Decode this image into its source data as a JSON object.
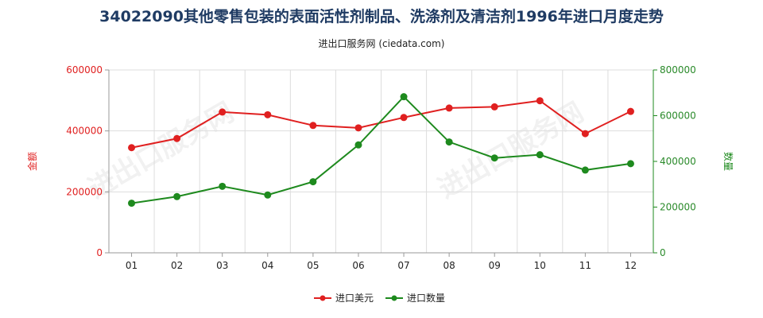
{
  "title": "34022090其他零售包装的表面活性剂制品、洗涤剂及清洁剂1996年进口月度走势",
  "subtitle": "进出口服务网 (ciedata.com)",
  "watermark": "进出口服务网",
  "colors": {
    "value": "#e02020",
    "quantity": "#1e8a1e",
    "grid": "#dddddd"
  },
  "chart_data": {
    "type": "line",
    "categories": [
      "01",
      "02",
      "03",
      "04",
      "05",
      "06",
      "07",
      "08",
      "09",
      "10",
      "11",
      "12"
    ],
    "series": [
      {
        "name": "进口美元",
        "axis": "left",
        "values": [
          345000,
          375000,
          462000,
          453000,
          418000,
          410000,
          444000,
          475000,
          479000,
          499000,
          391000,
          464000
        ]
      },
      {
        "name": "进口数量",
        "axis": "right",
        "values": [
          217000,
          246000,
          291000,
          253000,
          311000,
          472000,
          683000,
          485000,
          415000,
          429000,
          362000,
          390000
        ]
      }
    ],
    "left_axis": {
      "label": "金额",
      "ylim": [
        0,
        600000
      ],
      "ticks": [
        0,
        200000,
        400000,
        600000
      ]
    },
    "right_axis": {
      "label": "数量",
      "ylim": [
        0,
        800000
      ],
      "ticks": [
        0,
        200000,
        400000,
        600000,
        800000
      ]
    },
    "grid": true,
    "legend": "bottom-center"
  }
}
